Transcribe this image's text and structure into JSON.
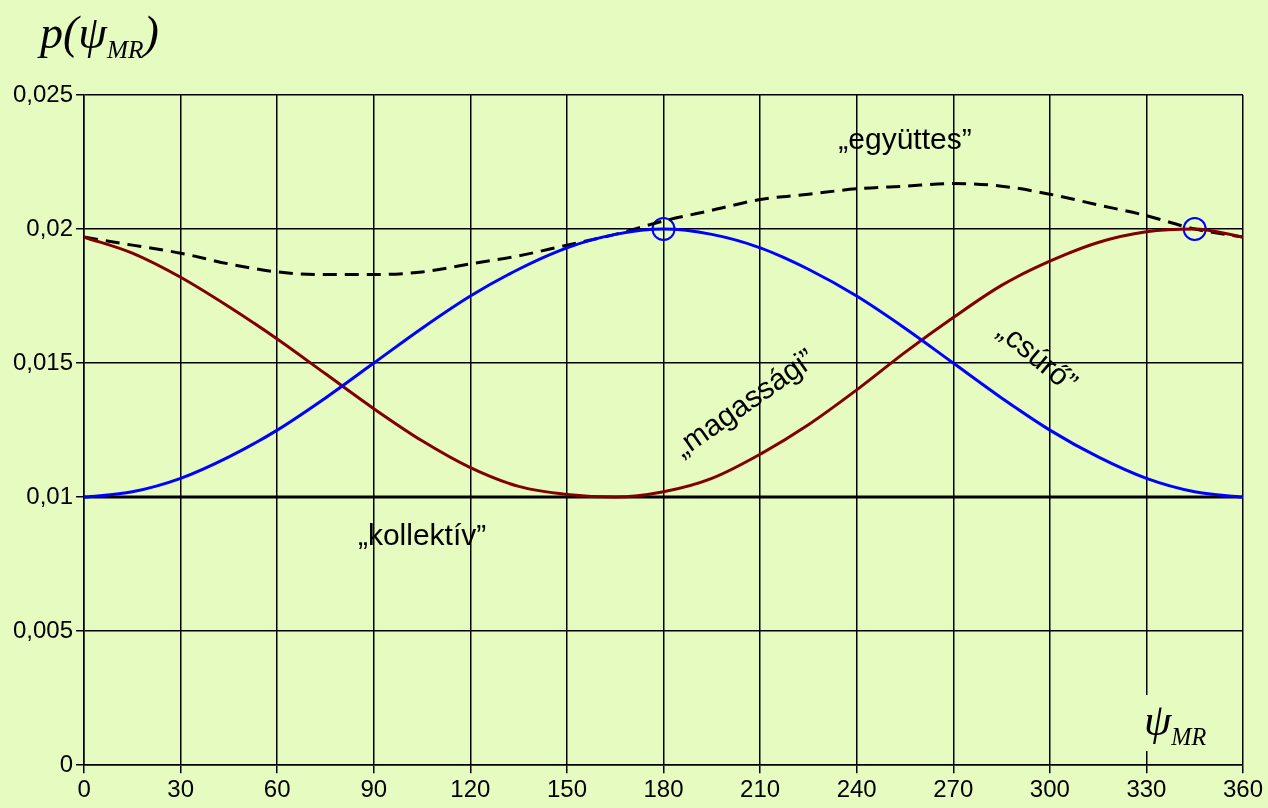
{
  "chart_data": {
    "type": "line",
    "title": "p(ψ$_{MR}$)",
    "xlabel": "ψ$_{MR}$",
    "x": [
      0,
      15,
      30,
      45,
      60,
      75,
      90,
      105,
      120,
      135,
      150,
      165,
      180,
      195,
      210,
      225,
      240,
      255,
      270,
      285,
      300,
      315,
      330,
      345,
      360
    ],
    "xlim": [
      0,
      360
    ],
    "xticks": [
      0,
      30,
      60,
      90,
      120,
      150,
      180,
      210,
      240,
      270,
      300,
      330,
      360
    ],
    "ylim": [
      0,
      0.025
    ],
    "yticks": [
      {
        "value": 0,
        "label": "0"
      },
      {
        "value": 0.005,
        "label": "0,005"
      },
      {
        "value": 0.01,
        "label": "0,01"
      },
      {
        "value": 0.015,
        "label": "0,015"
      },
      {
        "value": 0.02,
        "label": "0,02"
      },
      {
        "value": 0.025,
        "label": "0,025"
      }
    ],
    "grid": true,
    "legend": false,
    "marker": "none",
    "series": [
      {
        "name": "„csúrő”",
        "color": "#0000ff",
        "values": [
          0.01,
          0.0102,
          0.0107,
          0.0115,
          0.0125,
          0.0137,
          0.015,
          0.0163,
          0.0175,
          0.0185,
          0.0193,
          0.0198,
          0.02,
          0.0198,
          0.0193,
          0.0185,
          0.0175,
          0.0163,
          0.015,
          0.0137,
          0.0125,
          0.0115,
          0.0107,
          0.0102,
          0.01
        ]
      },
      {
        "name": "„magassági”",
        "color": "#800000",
        "values": [
          0.0197,
          0.0191,
          0.0182,
          0.0171,
          0.0159,
          0.0146,
          0.0133,
          0.0121,
          0.0111,
          0.0104,
          0.0101,
          0.01,
          0.0102,
          0.0107,
          0.0116,
          0.0127,
          0.014,
          0.0154,
          0.0167,
          0.0179,
          0.0188,
          0.0195,
          0.0199,
          0.02,
          0.0197
        ]
      },
      {
        "name": "„kollektív”",
        "color": "#000000",
        "values": [
          0.01,
          0.01,
          0.01,
          0.01,
          0.01,
          0.01,
          0.01,
          0.01,
          0.01,
          0.01,
          0.01,
          0.01,
          0.01,
          0.01,
          0.01,
          0.01,
          0.01,
          0.01,
          0.01,
          0.01,
          0.01,
          0.01,
          0.01,
          0.01,
          0.01
        ]
      },
      {
        "name": "„együttes”",
        "color": "#000000",
        "line_style": "dashed",
        "values": [
          0.0197,
          0.0194,
          0.0191,
          0.0187,
          0.0184,
          0.0183,
          0.0183,
          0.0184,
          0.0187,
          0.019,
          0.0194,
          0.0198,
          0.0203,
          0.0207,
          0.0211,
          0.0213,
          0.0215,
          0.0216,
          0.0217,
          0.0216,
          0.0213,
          0.0209,
          0.0205,
          0.02,
          0.0197
        ]
      },
      {
        "type": "scatter",
        "color": "#0000ff",
        "marker": "circle",
        "x": [
          180,
          345
        ],
        "values": [
          0.02,
          0.02
        ]
      }
    ]
  }
}
